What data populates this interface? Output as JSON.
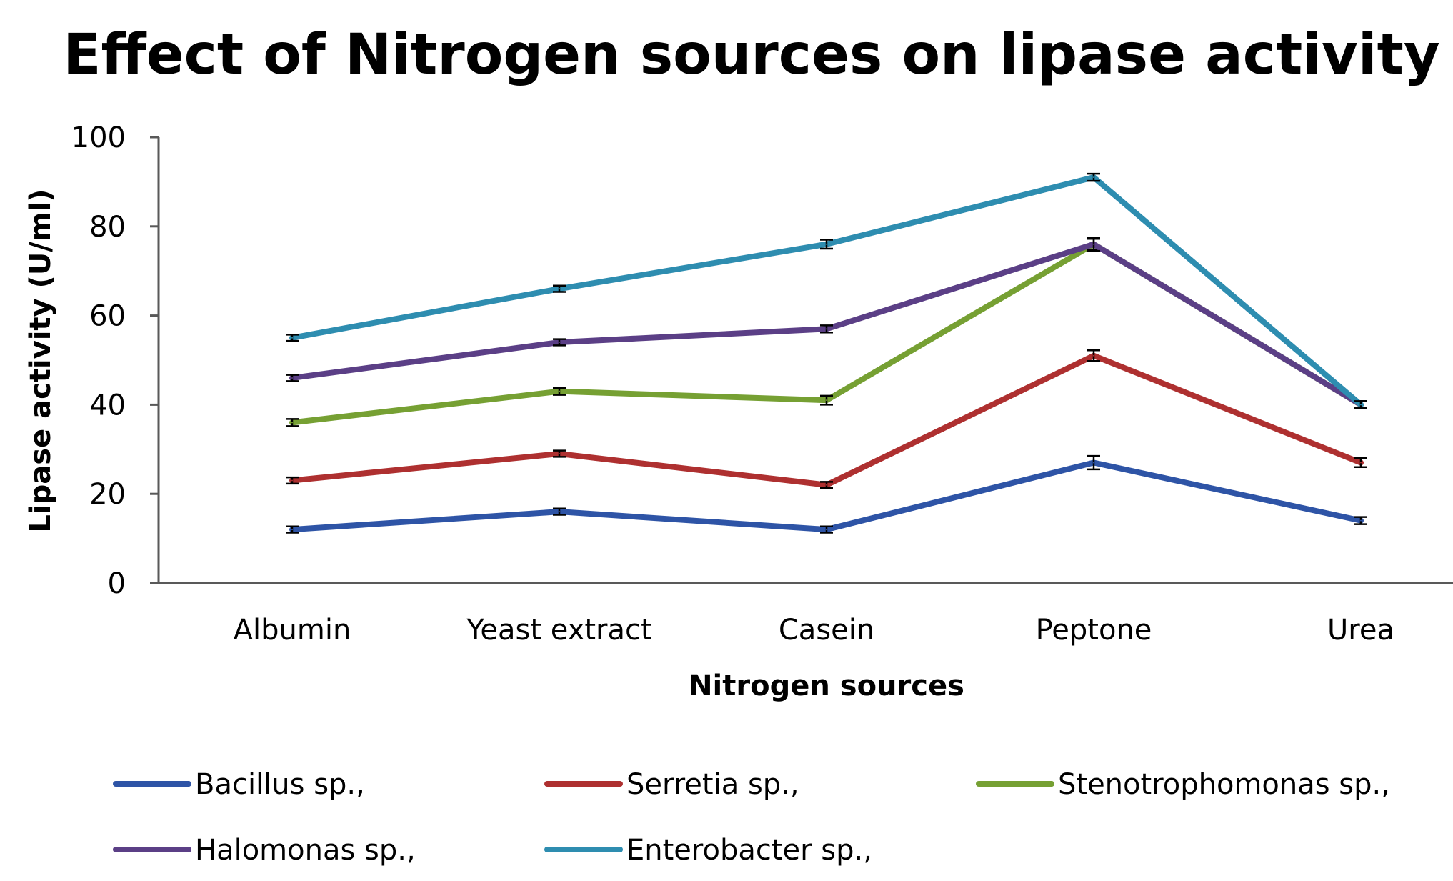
{
  "chart_data": {
    "type": "line",
    "title": "Effect of Nitrogen sources on lipase activity",
    "xlabel": "Nitrogen sources",
    "ylabel": "Lipase activity (U/ml)",
    "ylim": [
      0,
      100
    ],
    "yticks": [
      "0",
      "20",
      "40",
      "60",
      "80",
      "100"
    ],
    "categories": [
      "Albumin",
      "Yeast extract",
      "Casein",
      "Peptone",
      "Urea"
    ],
    "grid": false,
    "legend": "bottom",
    "error_bars": true,
    "series": [
      {
        "name": "Bacillus sp.,",
        "color": "#2E54A6",
        "values": [
          12,
          16,
          12,
          27,
          14
        ],
        "errors": [
          0.7,
          0.7,
          0.7,
          1.5,
          0.8
        ]
      },
      {
        "name": "Serretia sp.,",
        "color": "#AE3030",
        "values": [
          23,
          29,
          22,
          51,
          27
        ],
        "errors": [
          0.7,
          0.7,
          0.7,
          1.2,
          1.0
        ]
      },
      {
        "name": "Stenotrophomonas sp.,",
        "color": "#76A033",
        "values": [
          36,
          43,
          41,
          76,
          40
        ],
        "errors": [
          0.8,
          0.8,
          1.0,
          1.2,
          0.8
        ]
      },
      {
        "name": "Halomonas sp.,",
        "color": "#5B3F86",
        "values": [
          46,
          54,
          57,
          76,
          40
        ],
        "errors": [
          0.7,
          0.7,
          0.8,
          1.5,
          0.8
        ]
      },
      {
        "name": "Enterobacter sp.,",
        "color": "#2E8DB0",
        "values": [
          55,
          66,
          76,
          91,
          40
        ],
        "errors": [
          0.7,
          0.7,
          1.0,
          0.8,
          0.8
        ]
      }
    ]
  }
}
